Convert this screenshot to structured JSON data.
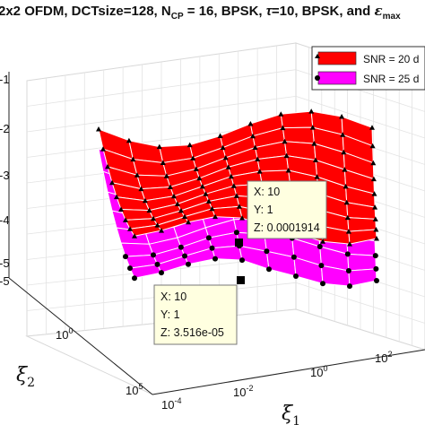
{
  "chart_data": {
    "type": "surface",
    "title": "2x2 OFDM, DCTsize=128, N",
    "title_sub": "CP",
    "title_rest": " = 16, BPSK, ",
    "title_tau": "τ",
    "title_rest2": "=10, BPSK, and ",
    "title_eps": "ε",
    "title_eps_sub": "max",
    "xlabel": "ξ",
    "xlabel_sub": "1",
    "ylabel": "ξ",
    "ylabel_sub": "2",
    "x_ticks": [
      {
        "base": "10",
        "exp": "-4"
      },
      {
        "base": "10",
        "exp": "-2"
      },
      {
        "base": "10",
        "exp": "0"
      },
      {
        "base": "10",
        "exp": "2"
      }
    ],
    "y_ticks": [
      {
        "base": "10",
        "exp": "0"
      },
      {
        "base": "10",
        "exp": "5"
      }
    ],
    "z_ticks": [
      "-1",
      "-2",
      "-3",
      "-4",
      "-5"
    ],
    "z_tick_bottom": "-5",
    "legend_position": "top-right",
    "series": [
      {
        "name": "SNR = 20 d",
        "color": "#ff0000",
        "marker": "triangle"
      },
      {
        "name": "SNR = 25 d",
        "color": "#ff00ff",
        "marker": "circle"
      }
    ],
    "datatips": [
      {
        "x": "X: 10",
        "y": "Y: 1",
        "z": "Z: 0.0001914"
      },
      {
        "x": "X: 10",
        "y": "Y: 1",
        "z": "Z: 3.516e-05"
      }
    ],
    "grid": true
  }
}
